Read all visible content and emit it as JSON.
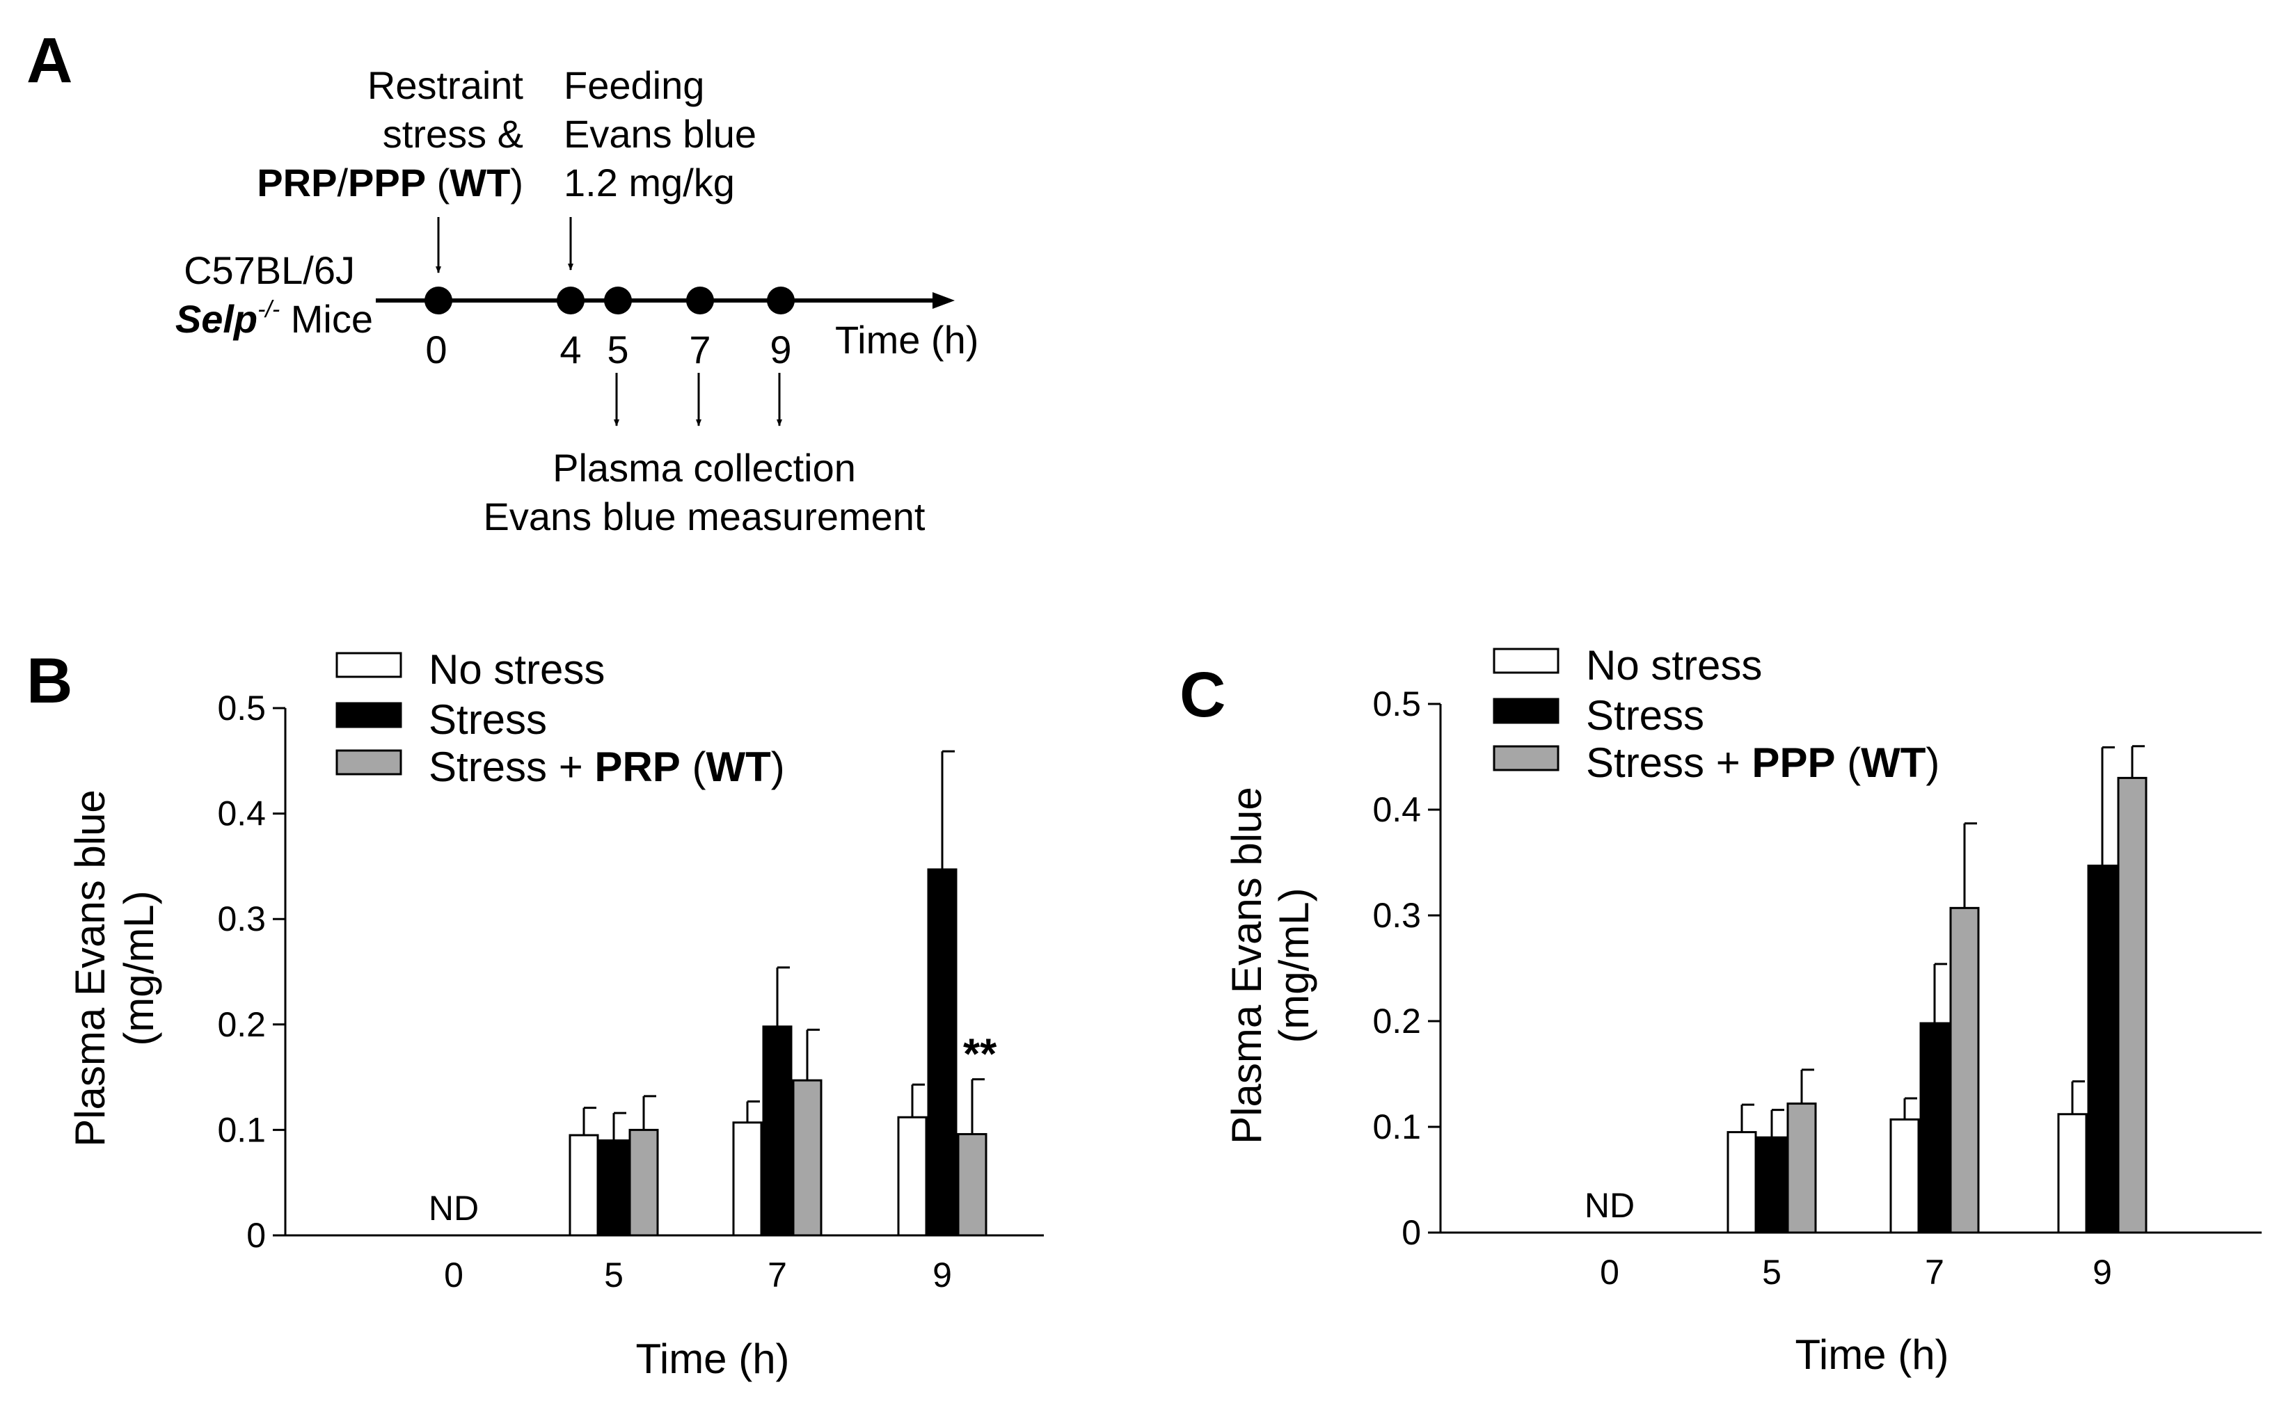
{
  "panels": {
    "a": {
      "letter": "A"
    },
    "b": {
      "letter": "B"
    },
    "c": {
      "letter": "C"
    }
  },
  "timeline": {
    "restraint_line1": "Restraint",
    "restraint_line2": "stress &",
    "prp": "PRP",
    "slash": "/",
    "ppp": "PPP",
    "paren_open": " (",
    "wt": "WT",
    "paren_close": ")",
    "feeding_line1": "Feeding",
    "feeding_line2": "Evans blue",
    "feeding_line3": "1.2 mg/kg",
    "strain": "C57BL/6J",
    "selp": "Selp",
    "selp_sup": "-/-",
    "mice": " Mice",
    "time_points": [
      "0",
      "4",
      "5",
      "7",
      "9"
    ],
    "time_label": "Time (h)",
    "collection_line1": "Plasma collection",
    "collection_line2": "Evans blue measurement",
    "colors": {
      "dot": "#000000",
      "line": "#000000"
    }
  },
  "chart_data": [
    {
      "type": "bar",
      "panel": "B",
      "categories": [
        "0",
        "5",
        "7",
        "9"
      ],
      "series": [
        {
          "name": "No stress",
          "color": "#ffffff",
          "values": [
            null,
            0.095,
            0.107,
            0.112
          ],
          "errors": [
            null,
            0.026,
            0.02,
            0.031
          ]
        },
        {
          "name": "Stress",
          "color": "#000000",
          "values": [
            null,
            0.09,
            0.198,
            0.347
          ],
          "errors": [
            null,
            0.026,
            0.056,
            0.112
          ]
        },
        {
          "name": "Stress + PRP (WT)",
          "color": "#a6a6a6",
          "values": [
            null,
            0.1,
            0.147,
            0.096
          ],
          "errors": [
            null,
            0.032,
            0.048,
            0.052
          ]
        }
      ],
      "legend": [
        "No stress",
        "Stress",
        "Stress + PRP (WT)"
      ],
      "legend_parts": {
        "prefix": "Stress + ",
        "bold": "PRP",
        "open": " (",
        "wt": "WT",
        "close": ")"
      },
      "legend_position": "top-left",
      "annotations": [
        {
          "category": "0",
          "text": "ND"
        },
        {
          "category": "9",
          "text": "**"
        }
      ],
      "ylabel_line1": "Plasma Evans blue",
      "ylabel_line2": "(mg/mL)",
      "xlabel": "Time (h)",
      "ylim": [
        0,
        0.5
      ],
      "yticks": [
        0,
        0.1,
        0.2,
        0.3,
        0.4,
        0.5
      ],
      "ytick_labels": [
        "0",
        "0.1",
        "0.2",
        "0.3",
        "0.4",
        "0.5"
      ],
      "grid": false
    },
    {
      "type": "bar",
      "panel": "C",
      "categories": [
        "0",
        "5",
        "7",
        "9"
      ],
      "series": [
        {
          "name": "No stress",
          "color": "#ffffff",
          "values": [
            null,
            0.095,
            0.107,
            0.112
          ],
          "errors": [
            null,
            0.026,
            0.02,
            0.031
          ]
        },
        {
          "name": "Stress",
          "color": "#000000",
          "values": [
            null,
            0.09,
            0.198,
            0.347
          ],
          "errors": [
            null,
            0.026,
            0.056,
            0.112
          ]
        },
        {
          "name": "Stress + PPP (WT)",
          "color": "#a6a6a6",
          "values": [
            null,
            0.122,
            0.307,
            0.43
          ],
          "errors": [
            null,
            0.032,
            0.08,
            0.03
          ]
        }
      ],
      "legend": [
        "No stress",
        "Stress",
        "Stress + PPP (WT)"
      ],
      "legend_parts": {
        "prefix": "Stress + ",
        "bold": "PPP",
        "open": " (",
        "wt": "WT",
        "close": ")"
      },
      "legend_position": "top-left",
      "annotations": [
        {
          "category": "0",
          "text": "ND"
        }
      ],
      "ylabel_line1": "Plasma Evans blue",
      "ylabel_line2": "(mg/mL)",
      "xlabel": "Time (h)",
      "ylim": [
        0,
        0.5
      ],
      "yticks": [
        0,
        0.1,
        0.2,
        0.3,
        0.4,
        0.5
      ],
      "ytick_labels": [
        "0",
        "0.1",
        "0.2",
        "0.3",
        "0.4",
        "0.5"
      ],
      "grid": false
    }
  ]
}
